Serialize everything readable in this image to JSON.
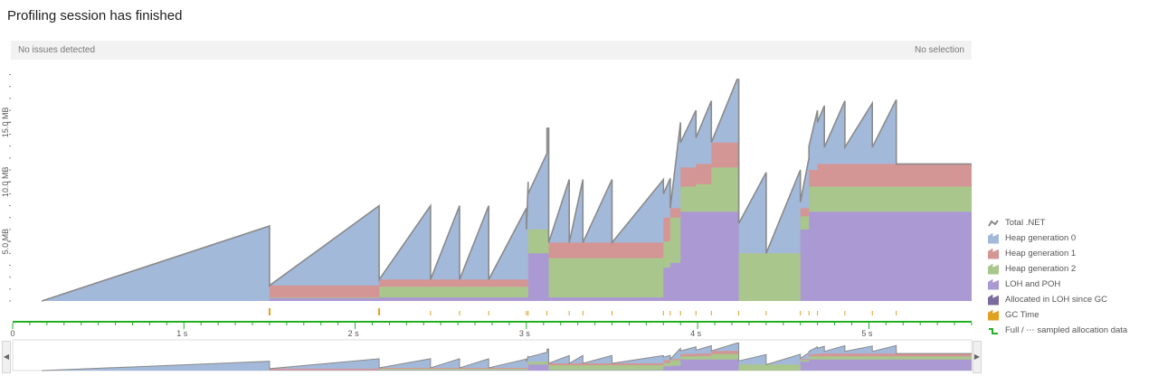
{
  "header": {
    "title": "Profiling session has finished"
  },
  "status": {
    "issues": "No issues detected",
    "selection": "No selection"
  },
  "colors": {
    "gen0": "#a3b9da",
    "gen1": "#d49595",
    "gen2": "#a9c78d",
    "loh": "#ab99d4",
    "allocated_loh": "#7a6c9e",
    "total": "#8a8a8a",
    "gc": "#e0a020",
    "timeline": "#22b022"
  },
  "chart_data": {
    "type": "area",
    "title": "",
    "xlabel": "",
    "ylabel": "",
    "xlim": [
      0,
      5.6
    ],
    "ylim": [
      0,
      19.5
    ],
    "yticks": [
      {
        "value": 5,
        "label": "5.0 MB"
      },
      {
        "value": 10,
        "label": "10.0 MB"
      },
      {
        "value": 15,
        "label": "15.0 MB"
      }
    ],
    "xticks": [
      {
        "value": 0,
        "label": "0"
      },
      {
        "value": 1,
        "label": "1 s"
      },
      {
        "value": 2,
        "label": "2 s"
      },
      {
        "value": 3,
        "label": "3 s"
      },
      {
        "value": 4,
        "label": "4 s"
      },
      {
        "value": 5,
        "label": "5 s"
      }
    ],
    "series": [
      {
        "name": "LOH and POH",
        "color_key": "loh",
        "points": [
          [
            0.17,
            0
          ],
          [
            1.5,
            0
          ],
          [
            1.5,
            0.25
          ],
          [
            2.14,
            0.25
          ],
          [
            2.14,
            0.3
          ],
          [
            3.01,
            0.3
          ],
          [
            3.01,
            4
          ],
          [
            3.13,
            4
          ],
          [
            3.13,
            0.3
          ],
          [
            3.8,
            0.3
          ],
          [
            3.8,
            2.8
          ],
          [
            3.84,
            2.8
          ],
          [
            3.84,
            3.2
          ],
          [
            3.9,
            3.2
          ],
          [
            3.9,
            7.5
          ],
          [
            4.24,
            7.5
          ],
          [
            4.24,
            0
          ],
          [
            4.6,
            0
          ],
          [
            4.6,
            6
          ],
          [
            4.65,
            6
          ],
          [
            4.65,
            7.5
          ],
          [
            5.6,
            7.5
          ]
        ]
      },
      {
        "name": "Heap generation 2",
        "color_key": "gen2",
        "points": [
          [
            0.17,
            0
          ],
          [
            1.5,
            0
          ],
          [
            1.5,
            0.3
          ],
          [
            2.14,
            0.3
          ],
          [
            2.14,
            1.2
          ],
          [
            3.01,
            1.2
          ],
          [
            3.01,
            6
          ],
          [
            3.13,
            6
          ],
          [
            3.13,
            3.6
          ],
          [
            3.8,
            3.6
          ],
          [
            3.8,
            5
          ],
          [
            3.84,
            5
          ],
          [
            3.84,
            7
          ],
          [
            3.9,
            7
          ],
          [
            3.9,
            9.6
          ],
          [
            3.99,
            9.6
          ],
          [
            3.99,
            9.8
          ],
          [
            4.08,
            9.8
          ],
          [
            4.08,
            11.2
          ],
          [
            4.24,
            11.2
          ],
          [
            4.24,
            4
          ],
          [
            4.6,
            4
          ],
          [
            4.6,
            7.1
          ],
          [
            4.65,
            7.1
          ],
          [
            4.65,
            9.6
          ],
          [
            5.6,
            9.6
          ]
        ]
      },
      {
        "name": "Heap generation 1",
        "color_key": "gen1",
        "points": [
          [
            0.17,
            0
          ],
          [
            1.5,
            0
          ],
          [
            1.5,
            1.3
          ],
          [
            2.14,
            1.3
          ],
          [
            2.14,
            1.8
          ],
          [
            3.01,
            1.8
          ],
          [
            3.01,
            6
          ],
          [
            3.13,
            6
          ],
          [
            3.13,
            4.9
          ],
          [
            3.8,
            4.9
          ],
          [
            3.8,
            7
          ],
          [
            3.84,
            7
          ],
          [
            3.84,
            7.8
          ],
          [
            3.9,
            7.8
          ],
          [
            3.9,
            11.2
          ],
          [
            3.99,
            11.2
          ],
          [
            3.99,
            11.5
          ],
          [
            4.08,
            11.5
          ],
          [
            4.08,
            13.3
          ],
          [
            4.24,
            13.3
          ],
          [
            4.24,
            4
          ],
          [
            4.6,
            4
          ],
          [
            4.6,
            7.8
          ],
          [
            4.65,
            7.8
          ],
          [
            4.65,
            11
          ],
          [
            4.7,
            11
          ],
          [
            4.7,
            11.5
          ],
          [
            5.6,
            11.5
          ]
        ]
      }
    ],
    "total_heap": [
      [
        0.17,
        0
      ],
      [
        1.5,
        6.3
      ],
      [
        1.5,
        1.3
      ],
      [
        2.14,
        8
      ],
      [
        2.14,
        1.8
      ],
      [
        2.44,
        8
      ],
      [
        2.44,
        1.8
      ],
      [
        2.61,
        8
      ],
      [
        2.61,
        1.8
      ],
      [
        2.78,
        8
      ],
      [
        2.78,
        1.8
      ],
      [
        3.0,
        7.8
      ],
      [
        3.0,
        6
      ],
      [
        3.01,
        10
      ],
      [
        3.01,
        9
      ],
      [
        3.12,
        12.4
      ],
      [
        3.12,
        14.5
      ],
      [
        3.13,
        14.5
      ],
      [
        3.13,
        4.9
      ],
      [
        3.25,
        10.2
      ],
      [
        3.25,
        4.9
      ],
      [
        3.33,
        10.2
      ],
      [
        3.33,
        4.9
      ],
      [
        3.5,
        10.2
      ],
      [
        3.5,
        4.9
      ],
      [
        3.8,
        10.2
      ],
      [
        3.8,
        9
      ],
      [
        3.84,
        10.3
      ],
      [
        3.84,
        7.8
      ],
      [
        3.9,
        15
      ],
      [
        3.9,
        13.3
      ],
      [
        3.99,
        16
      ],
      [
        3.99,
        13.7
      ],
      [
        4.08,
        16.8
      ],
      [
        4.08,
        13.3
      ],
      [
        4.23,
        18.6
      ],
      [
        4.24,
        18.6
      ],
      [
        4.24,
        6.5
      ],
      [
        4.4,
        10.8
      ],
      [
        4.4,
        4
      ],
      [
        4.6,
        11
      ],
      [
        4.6,
        8.3
      ],
      [
        4.65,
        12
      ],
      [
        4.65,
        13
      ],
      [
        4.7,
        16
      ],
      [
        4.7,
        15
      ],
      [
        4.74,
        16.4
      ],
      [
        4.74,
        12.9
      ],
      [
        4.86,
        16.8
      ],
      [
        4.86,
        12.9
      ],
      [
        5.02,
        16.6
      ],
      [
        5.02,
        12.9
      ],
      [
        5.16,
        16.9
      ],
      [
        5.16,
        11.5
      ],
      [
        5.6,
        11.5
      ]
    ],
    "gc_events": [
      1.5,
      2.14,
      2.44,
      2.61,
      2.78,
      3.0,
      3.01,
      3.12,
      3.25,
      3.33,
      3.5,
      3.8,
      3.84,
      3.9,
      3.99,
      4.08,
      4.24,
      4.4,
      4.6,
      4.65,
      4.7,
      4.86,
      5.02,
      5.16
    ],
    "legend": [
      {
        "label": "Total .NET",
        "kind": "line",
        "color_key": "total"
      },
      {
        "label": "Heap generation 0",
        "kind": "area",
        "color_key": "gen0"
      },
      {
        "label": "Heap generation 1",
        "kind": "area",
        "color_key": "gen1"
      },
      {
        "label": "Heap generation 2",
        "kind": "area",
        "color_key": "gen2"
      },
      {
        "label": "LOH and POH",
        "kind": "area",
        "color_key": "loh"
      },
      {
        "label": "Allocated in LOH since GC",
        "kind": "area",
        "color_key": "allocated_loh"
      },
      {
        "label": "GC Time",
        "kind": "area",
        "color_key": "gc"
      },
      {
        "label": "Full / ⋯ sampled allocation data",
        "kind": "step",
        "color_key": "timeline"
      }
    ],
    "legend_position": "right"
  }
}
